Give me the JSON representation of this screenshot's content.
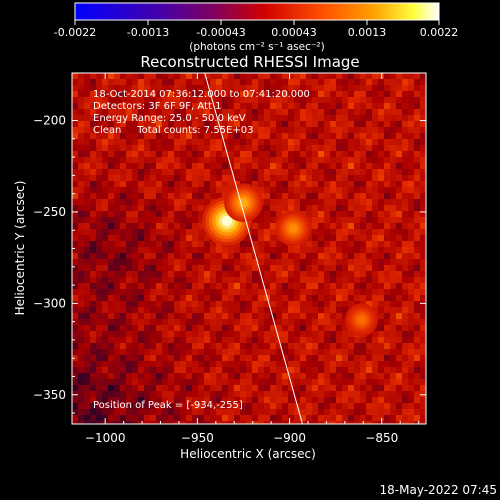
{
  "colorbar": {
    "ticks": [
      "-0.0022",
      "-0.0013",
      "-0.00043",
      "0.00043",
      "0.0013",
      "0.0022"
    ],
    "label": "(photons cm⁻² s⁻¹ asec⁻²)",
    "vmin": -0.0022,
    "vmax": 0.0022
  },
  "annotations": {
    "time_range": "18-Oct-2014 07:36:12.000 to 07:41:20.000",
    "detectors": "Detectors: 3F 6F 9F, Att 1",
    "energy_range": "Energy Range: 25.0 - 50.0 keV",
    "clean": "Clean     Total counts: 7.55E+03",
    "peak": "Position of Peak = [-934,-255]"
  },
  "footer": {
    "date": "18-May-2022 07:45"
  },
  "chart_data": {
    "type": "heatmap",
    "title": "Reconstructed RHESSI Image",
    "xlabel": "Heliocentric X (arcsec)",
    "ylabel": "Heliocentric Y (arcsec)",
    "xlim": [
      -1018,
      -826
    ],
    "ylim": [
      -366,
      -174
    ],
    "xticks": [
      -1000,
      -950,
      -900,
      -850
    ],
    "yticks": [
      -200,
      -250,
      -300,
      -350
    ],
    "xtick_labels": [
      "−1000",
      "−950",
      "−900",
      "−850"
    ],
    "ytick_labels": [
      "−200",
      "−250",
      "−300",
      "−350"
    ],
    "sources": [
      {
        "x": -934,
        "y": -255,
        "intensity": 1.0
      },
      {
        "x": -925,
        "y": -245,
        "intensity": 0.65
      },
      {
        "x": -898,
        "y": -259,
        "intensity": 0.55
      },
      {
        "x": -861,
        "y": -309,
        "intensity": 0.45
      }
    ],
    "limb_line": [
      [
        -946,
        -174
      ],
      [
        -893,
        -366
      ]
    ],
    "colormap": "rainbow-to-hot: blue, purple, red, orange, yellow, white"
  }
}
